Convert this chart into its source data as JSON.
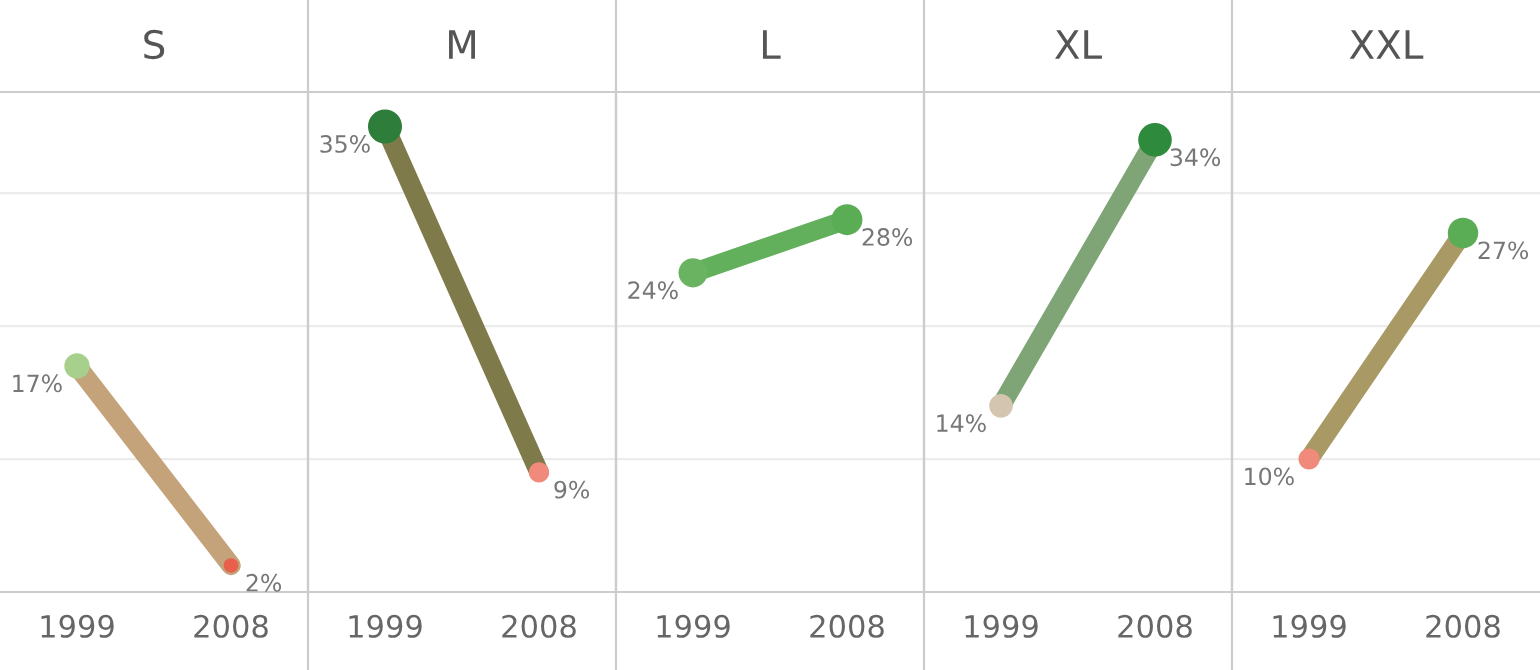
{
  "chart_data": [
    {
      "type": "line",
      "title": "S",
      "categories": [
        "1999",
        "2008"
      ],
      "ylim": [
        0,
        37.6
      ],
      "yticks": [
        {
          "value": 10,
          "label": null
        },
        {
          "value": 20,
          "label": null
        },
        {
          "value": 30,
          "label": null
        }
      ],
      "grid": "y",
      "tick_labels": "x",
      "marker": "circle",
      "series": [
        {
          "color": "#c4a27a",
          "colors": [
            "#a8d08d",
            "#e8604c"
          ],
          "values": [
            17,
            2
          ],
          "value_labels": [
            "17%",
            "2%"
          ]
        }
      ]
    },
    {
      "type": "line",
      "title": "M",
      "categories": [
        "1999",
        "2008"
      ],
      "ylim": [
        0,
        37.6
      ],
      "yticks": [
        {
          "value": 10,
          "label": null
        },
        {
          "value": 20,
          "label": null
        },
        {
          "value": 30,
          "label": null
        }
      ],
      "grid": "y",
      "tick_labels": "x",
      "marker": "circle",
      "series": [
        {
          "color": "#7f7a4a",
          "colors": [
            "#2e7d3a",
            "#f08a7a"
          ],
          "values": [
            35,
            9
          ],
          "value_labels": [
            "35%",
            "9%"
          ]
        }
      ]
    },
    {
      "type": "line",
      "title": "L",
      "categories": [
        "1999",
        "2008"
      ],
      "ylim": [
        0,
        37.6
      ],
      "yticks": [
        {
          "value": 10,
          "label": null
        },
        {
          "value": 20,
          "label": null
        },
        {
          "value": 30,
          "label": null
        }
      ],
      "grid": "y",
      "tick_labels": "x",
      "marker": "circle",
      "series": [
        {
          "color": "#62b05b",
          "colors": [
            "#6ab461",
            "#5aac55"
          ],
          "values": [
            24,
            28
          ],
          "value_labels": [
            "24%",
            "28%"
          ]
        }
      ]
    },
    {
      "type": "line",
      "title": "XL",
      "categories": [
        "1999",
        "2008"
      ],
      "ylim": [
        0,
        37.6
      ],
      "yticks": [
        {
          "value": 10,
          "label": null
        },
        {
          "value": 20,
          "label": null
        },
        {
          "value": 30,
          "label": null
        }
      ],
      "grid": "y",
      "tick_labels": "x",
      "marker": "circle",
      "series": [
        {
          "color": "#7fa577",
          "colors": [
            "#d4c5b0",
            "#2e8b3e"
          ],
          "values": [
            14,
            34
          ],
          "value_labels": [
            "14%",
            "34%"
          ]
        }
      ]
    },
    {
      "type": "line",
      "title": "XXL",
      "categories": [
        "1999",
        "2008"
      ],
      "ylim": [
        0,
        37.6
      ],
      "yticks": [
        {
          "value": 10,
          "label": null
        },
        {
          "value": 20,
          "label": null
        },
        {
          "value": 30,
          "label": null
        }
      ],
      "grid": "y",
      "tick_labels": "x",
      "marker": "circle",
      "series": [
        {
          "color": "#a99a65",
          "colors": [
            "#f08a7a",
            "#5aac55"
          ],
          "values": [
            10,
            27
          ],
          "value_labels": [
            "10%",
            "27%"
          ]
        }
      ]
    }
  ]
}
